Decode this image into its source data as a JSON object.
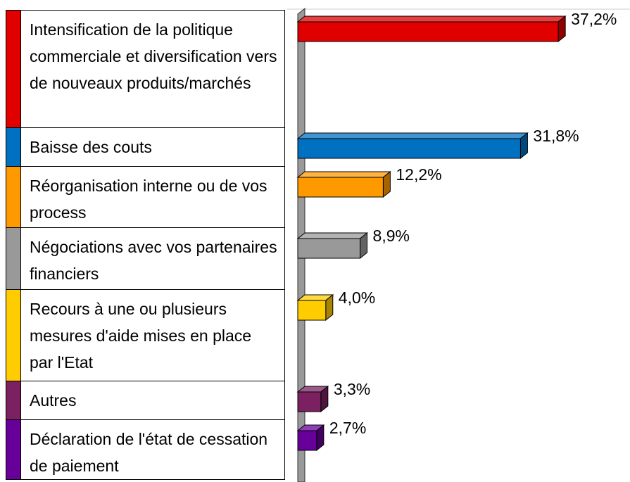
{
  "chart_data": {
    "type": "bar",
    "categories": [
      "Intensification de la politique commerciale et diversification vers de nouveaux produits/marchés",
      "Baisse des couts",
      "Réorganisation interne ou de vos process",
      "Négociations avec vos partenaires financiers",
      "Recours à une ou plusieurs mesures d'aide mises en place par l'Etat",
      "Autres",
      "Déclaration de l'état de cessation de paiement"
    ],
    "values": [
      37.2,
      31.8,
      12.2,
      8.9,
      4.0,
      3.3,
      2.7
    ],
    "value_labels": [
      "37,2%",
      "31,8%",
      "12,2%",
      "8,9%",
      "4,0%",
      "3,3%",
      "2,7%"
    ],
    "colors": [
      "#e00000",
      "#0070c0",
      "#ff9900",
      "#999999",
      "#ffcc00",
      "#7b2060",
      "#660099"
    ]
  }
}
